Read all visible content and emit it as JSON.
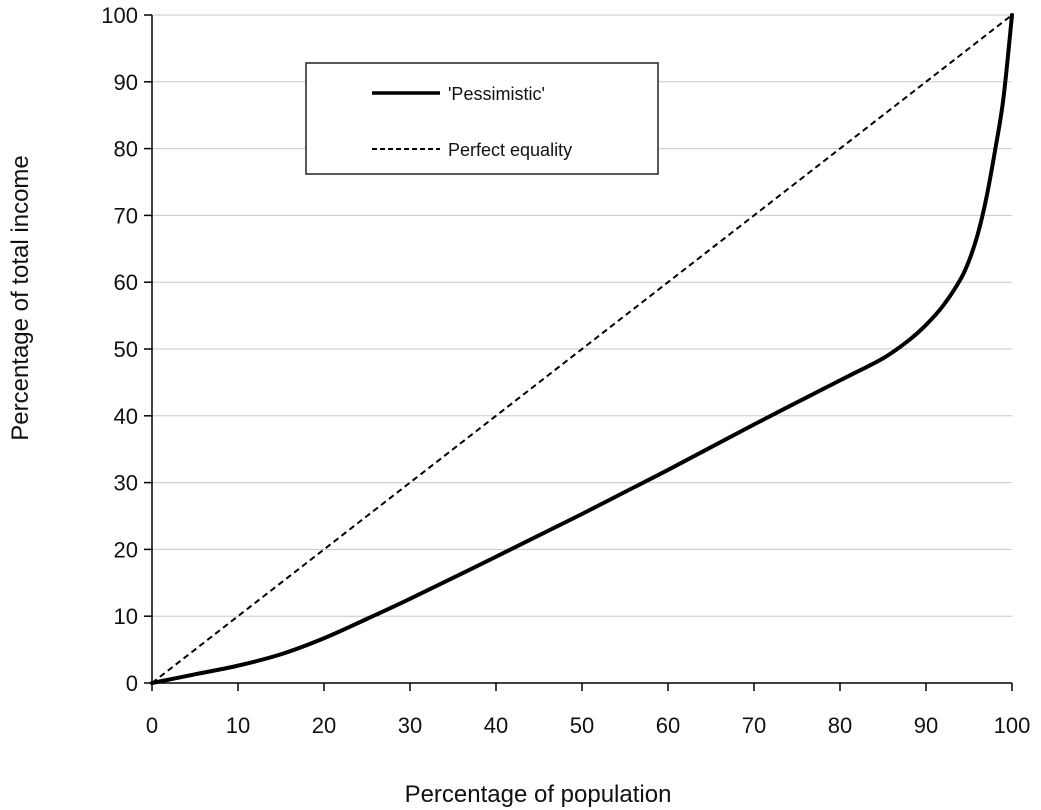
{
  "chart_data": {
    "type": "line",
    "title": "",
    "xlabel": "Percentage of population",
    "ylabel": "Percentage of total income",
    "xlim": [
      0,
      100
    ],
    "ylim": [
      0,
      100
    ],
    "xticks": [
      "0",
      "10",
      "20",
      "30",
      "40",
      "50",
      "60",
      "70",
      "80",
      "90",
      "100"
    ],
    "yticks": [
      "0",
      "10",
      "20",
      "30",
      "40",
      "50",
      "60",
      "70",
      "80",
      "90",
      "100"
    ],
    "grid": "horizontal",
    "legend_position": "top-left",
    "series": [
      {
        "name": "'Pessimistic'",
        "style": "solid",
        "color": "#000000",
        "x": [
          0,
          5,
          10,
          15,
          20,
          25,
          30,
          40,
          50,
          60,
          70,
          80,
          85,
          88,
          90,
          92,
          94,
          95,
          96,
          97,
          98,
          99,
          100
        ],
        "y": [
          0,
          1.3,
          2.6,
          4.3,
          6.7,
          9.6,
          12.6,
          18.9,
          25.3,
          31.9,
          38.7,
          45.3,
          48.6,
          51.3,
          53.6,
          56.5,
          60.4,
          63.2,
          67.1,
          72.5,
          79.5,
          87.5,
          100
        ]
      },
      {
        "name": "Perfect equality",
        "style": "dashed",
        "color": "#000000",
        "x": [
          0,
          100
        ],
        "y": [
          0,
          100
        ]
      }
    ]
  }
}
